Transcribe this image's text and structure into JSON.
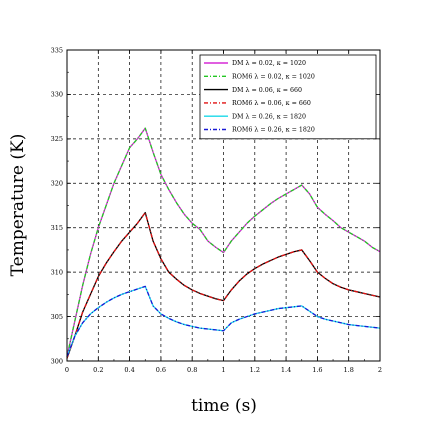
{
  "chart_data": {
    "type": "line",
    "title": "",
    "xlabel": "time (s)",
    "ylabel": "Temperature (K)",
    "xlim": [
      0,
      2
    ],
    "ylim": [
      300,
      335
    ],
    "xticks": [
      "0",
      "0.2",
      "0.4",
      "0.6",
      "0.8",
      "1",
      "1.2",
      "1.4",
      "1.6",
      "1.8",
      "2"
    ],
    "yticks": [
      "300",
      "305",
      "310",
      "315",
      "320",
      "325",
      "330",
      "335"
    ],
    "grid": true,
    "legend_position": "top-right",
    "series": [
      {
        "name": "DM   λ = 0.02, κ = 1020",
        "color": "#d62ad6",
        "dash": "solid",
        "x": [
          0,
          0.05,
          0.1,
          0.15,
          0.2,
          0.25,
          0.3,
          0.35,
          0.4,
          0.45,
          0.5,
          0.55,
          0.6,
          0.65,
          0.7,
          0.75,
          0.8,
          0.85,
          0.9,
          0.95,
          1.0,
          1.05,
          1.1,
          1.15,
          1.2,
          1.25,
          1.3,
          1.35,
          1.4,
          1.45,
          1.5,
          1.55,
          1.6,
          1.65,
          1.7,
          1.75,
          1.8,
          1.85,
          1.9,
          1.95,
          2.0
        ],
        "values": [
          300.5,
          304.5,
          308.5,
          312,
          315,
          317.5,
          320,
          322,
          324,
          325,
          326.2,
          323.5,
          321,
          319.3,
          317.8,
          316.5,
          315.5,
          314.8,
          313.5,
          312.8,
          312.2,
          313.5,
          314.5,
          315.5,
          316.3,
          317,
          317.7,
          318.3,
          318.8,
          319.3,
          319.8,
          318.8,
          317.3,
          316.5,
          315.8,
          315,
          314.5,
          314,
          313.5,
          312.8,
          312.3
        ]
      },
      {
        "name": "ROM6 λ = 0.02, κ = 1020",
        "color": "#22c722",
        "dash": "dashdot",
        "x": [
          0,
          0.05,
          0.1,
          0.15,
          0.2,
          0.25,
          0.3,
          0.35,
          0.4,
          0.45,
          0.5,
          0.55,
          0.6,
          0.65,
          0.7,
          0.75,
          0.8,
          0.85,
          0.9,
          0.95,
          1.0,
          1.05,
          1.1,
          1.15,
          1.2,
          1.25,
          1.3,
          1.35,
          1.4,
          1.45,
          1.5,
          1.55,
          1.6,
          1.65,
          1.7,
          1.75,
          1.8,
          1.85,
          1.9,
          1.95,
          2.0
        ],
        "values": [
          300.5,
          304.5,
          308.5,
          312,
          315,
          317.5,
          320,
          322,
          324,
          325,
          326.2,
          323.5,
          321,
          319.3,
          317.8,
          316.5,
          315.5,
          314.8,
          313.5,
          312.8,
          312.2,
          313.5,
          314.5,
          315.5,
          316.3,
          317,
          317.7,
          318.3,
          318.8,
          319.3,
          319.8,
          318.8,
          317.3,
          316.5,
          315.8,
          315,
          314.5,
          314,
          313.5,
          312.8,
          312.3
        ]
      },
      {
        "name": "DM   λ = 0.06, κ = 660",
        "color": "#000000",
        "dash": "solid",
        "x": [
          0,
          0.05,
          0.1,
          0.15,
          0.2,
          0.25,
          0.3,
          0.35,
          0.4,
          0.45,
          0.5,
          0.55,
          0.6,
          0.65,
          0.7,
          0.75,
          0.8,
          0.85,
          0.9,
          0.95,
          1.0,
          1.05,
          1.1,
          1.15,
          1.2,
          1.25,
          1.3,
          1.35,
          1.4,
          1.45,
          1.5,
          1.55,
          1.6,
          1.65,
          1.7,
          1.75,
          1.8,
          1.85,
          1.9,
          1.95,
          2.0
        ],
        "values": [
          300.3,
          302.8,
          305.5,
          307.5,
          309.5,
          311,
          312.3,
          313.5,
          314.5,
          315.5,
          316.7,
          313.5,
          311.5,
          310,
          309.2,
          308.5,
          308,
          307.6,
          307.3,
          307,
          306.8,
          308,
          309,
          309.8,
          310.4,
          310.9,
          311.3,
          311.7,
          312,
          312.3,
          312.5,
          311.3,
          310,
          309.3,
          308.7,
          308.3,
          308,
          307.8,
          307.6,
          307.4,
          307.2
        ]
      },
      {
        "name": "ROM6 λ = 0.06, κ = 660",
        "color": "#e01010",
        "dash": "dashdot",
        "x": [
          0,
          0.05,
          0.1,
          0.15,
          0.2,
          0.25,
          0.3,
          0.35,
          0.4,
          0.45,
          0.5,
          0.55,
          0.6,
          0.65,
          0.7,
          0.75,
          0.8,
          0.85,
          0.9,
          0.95,
          1.0,
          1.05,
          1.1,
          1.15,
          1.2,
          1.25,
          1.3,
          1.35,
          1.4,
          1.45,
          1.5,
          1.55,
          1.6,
          1.65,
          1.7,
          1.75,
          1.8,
          1.85,
          1.9,
          1.95,
          2.0
        ],
        "values": [
          300.3,
          302.8,
          305.5,
          307.5,
          309.5,
          311,
          312.3,
          313.5,
          314.5,
          315.5,
          316.7,
          313.5,
          311.5,
          310,
          309.2,
          308.5,
          308,
          307.6,
          307.3,
          307,
          306.8,
          308,
          309,
          309.8,
          310.4,
          310.9,
          311.3,
          311.7,
          312,
          312.3,
          312.5,
          311.3,
          310,
          309.3,
          308.7,
          308.3,
          308,
          307.8,
          307.6,
          307.4,
          307.2
        ]
      },
      {
        "name": "DM   λ = 0.26, κ = 1820",
        "color": "#18d8e8",
        "dash": "solid",
        "x": [
          0,
          0.05,
          0.1,
          0.15,
          0.2,
          0.25,
          0.3,
          0.35,
          0.4,
          0.45,
          0.5,
          0.55,
          0.6,
          0.65,
          0.7,
          0.75,
          0.8,
          0.85,
          0.9,
          0.95,
          1.0,
          1.05,
          1.1,
          1.15,
          1.2,
          1.25,
          1.3,
          1.35,
          1.4,
          1.45,
          1.5,
          1.55,
          1.6,
          1.65,
          1.7,
          1.75,
          1.8,
          1.85,
          1.9,
          1.95,
          2.0
        ],
        "values": [
          300.5,
          302.8,
          304.3,
          305.3,
          306,
          306.6,
          307.1,
          307.5,
          307.8,
          308.1,
          308.4,
          306.2,
          305.3,
          304.8,
          304.4,
          304.1,
          303.9,
          303.7,
          303.6,
          303.5,
          303.4,
          304.3,
          304.7,
          305,
          305.3,
          305.5,
          305.7,
          305.9,
          306,
          306.1,
          306.2,
          305.6,
          305,
          304.7,
          304.5,
          304.3,
          304.1,
          304,
          303.9,
          303.8,
          303.7
        ]
      },
      {
        "name": "ROM6 λ = 0.26, κ = 1820",
        "color": "#1a1ad6",
        "dash": "dashdot",
        "x": [
          0,
          0.05,
          0.1,
          0.15,
          0.2,
          0.25,
          0.3,
          0.35,
          0.4,
          0.45,
          0.5,
          0.55,
          0.6,
          0.65,
          0.7,
          0.75,
          0.8,
          0.85,
          0.9,
          0.95,
          1.0,
          1.05,
          1.1,
          1.15,
          1.2,
          1.25,
          1.3,
          1.35,
          1.4,
          1.45,
          1.5,
          1.55,
          1.6,
          1.65,
          1.7,
          1.75,
          1.8,
          1.85,
          1.9,
          1.95,
          2.0
        ],
        "values": [
          300.5,
          302.8,
          304.3,
          305.3,
          306,
          306.6,
          307.1,
          307.5,
          307.8,
          308.1,
          308.4,
          306.2,
          305.3,
          304.8,
          304.4,
          304.1,
          303.9,
          303.7,
          303.6,
          303.5,
          303.4,
          304.3,
          304.7,
          305,
          305.3,
          305.5,
          305.7,
          305.9,
          306,
          306.1,
          306.2,
          305.6,
          305,
          304.7,
          304.5,
          304.3,
          304.1,
          304,
          303.9,
          303.8,
          303.7
        ]
      }
    ]
  }
}
